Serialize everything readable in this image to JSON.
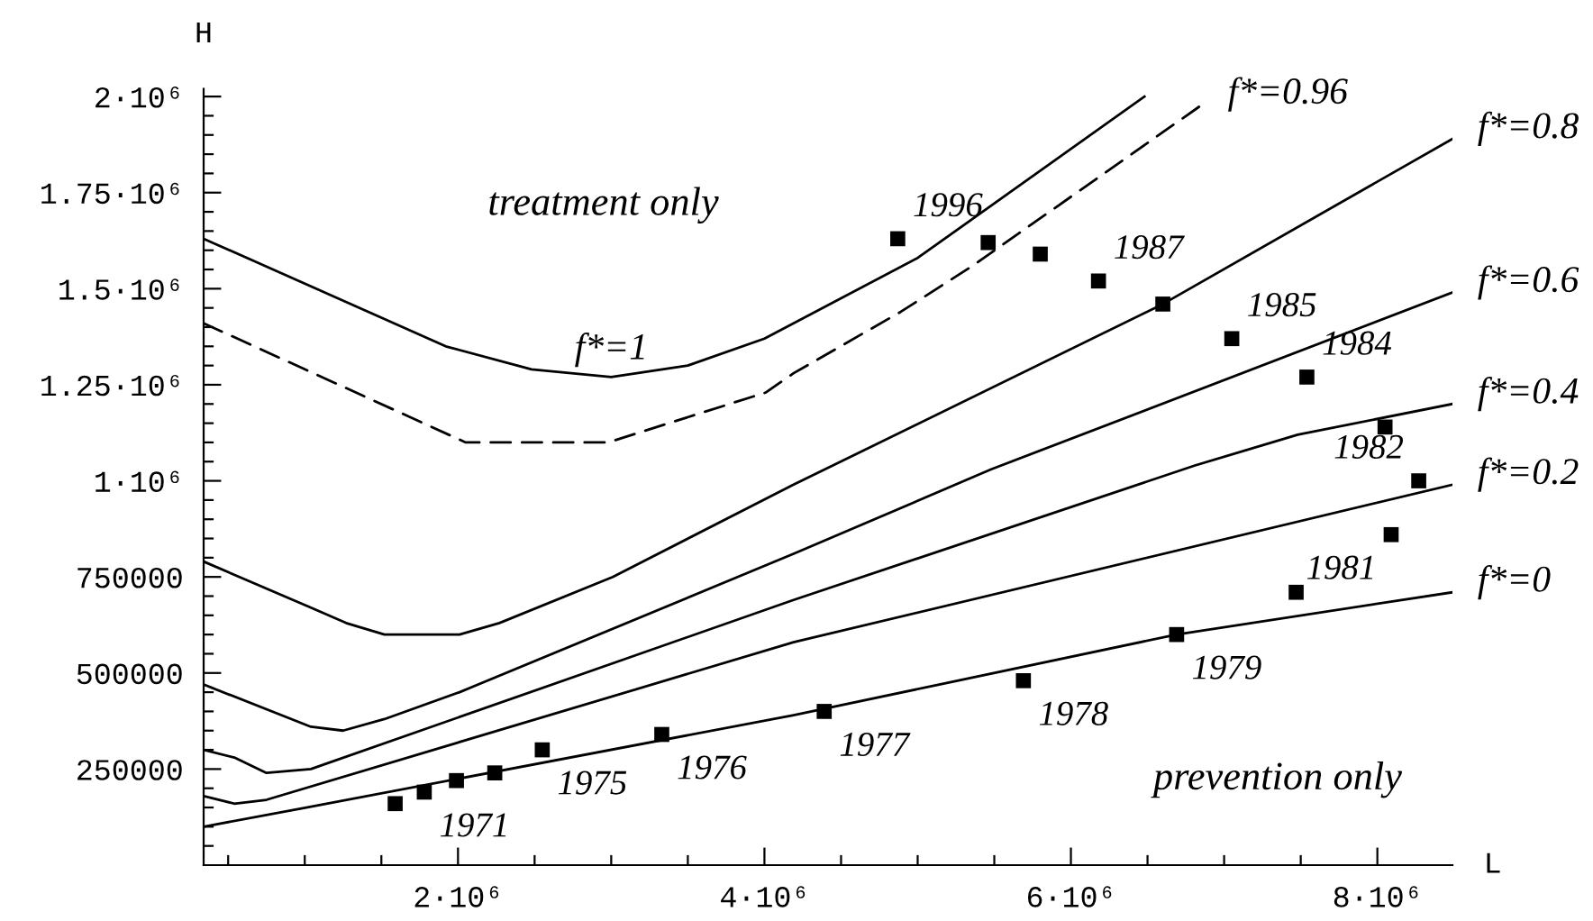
{
  "chart_data": {
    "type": "line",
    "xlabel": "L",
    "ylabel": "H",
    "xlim": [
      340000,
      8490000
    ],
    "ylim": [
      0,
      2020000
    ],
    "xticks": [
      {
        "value": 500000,
        "label": null
      },
      {
        "value": 1000000,
        "label": null
      },
      {
        "value": 1500000,
        "label": null
      },
      {
        "value": 2000000,
        "label": "2·10⁶"
      },
      {
        "value": 2500000,
        "label": null
      },
      {
        "value": 3000000,
        "label": null
      },
      {
        "value": 3500000,
        "label": null
      },
      {
        "value": 4000000,
        "label": "4·10⁶"
      },
      {
        "value": 4500000,
        "label": null
      },
      {
        "value": 5000000,
        "label": null
      },
      {
        "value": 5500000,
        "label": null
      },
      {
        "value": 6000000,
        "label": "6·10⁶"
      },
      {
        "value": 6500000,
        "label": null
      },
      {
        "value": 7000000,
        "label": null
      },
      {
        "value": 7500000,
        "label": null
      },
      {
        "value": 8000000,
        "label": "8·10⁶"
      }
    ],
    "yticks": [
      {
        "value": 50000,
        "label": null
      },
      {
        "value": 100000,
        "label": null
      },
      {
        "value": 150000,
        "label": null
      },
      {
        "value": 200000,
        "label": null
      },
      250000,
      {
        "value": 300000,
        "label": null
      },
      {
        "value": 350000,
        "label": null
      },
      {
        "value": 400000,
        "label": null
      },
      {
        "value": 450000,
        "label": null
      },
      500000,
      {
        "value": 550000,
        "label": null
      },
      {
        "value": 600000,
        "label": null
      },
      {
        "value": 650000,
        "label": null
      },
      {
        "value": 700000,
        "label": null
      },
      750000,
      {
        "value": 800000,
        "label": null
      },
      {
        "value": 850000,
        "label": null
      },
      {
        "value": 900000,
        "label": null
      },
      {
        "value": 950000,
        "label": null
      },
      {
        "value": 1000000,
        "label": "1·10⁶"
      },
      {
        "value": 1050000,
        "label": null
      },
      {
        "value": 1100000,
        "label": null
      },
      {
        "value": 1150000,
        "label": null
      },
      {
        "value": 1200000,
        "label": null
      },
      {
        "value": 1250000,
        "label": "1.25·10⁶"
      },
      {
        "value": 1300000,
        "label": null
      },
      {
        "value": 1350000,
        "label": null
      },
      {
        "value": 1400000,
        "label": null
      },
      {
        "value": 1450000,
        "label": null
      },
      {
        "value": 1500000,
        "label": "1.5·10⁶"
      },
      {
        "value": 1550000,
        "label": null
      },
      {
        "value": 1600000,
        "label": null
      },
      {
        "value": 1650000,
        "label": null
      },
      {
        "value": 1700000,
        "label": null
      },
      {
        "value": 1750000,
        "label": "1.75·10⁶"
      },
      {
        "value": 1800000,
        "label": null
      },
      {
        "value": 1850000,
        "label": null
      },
      {
        "value": 1900000,
        "label": null
      },
      {
        "value": 1950000,
        "label": null
      },
      {
        "value": 2000000,
        "label": "2·10⁶"
      }
    ],
    "grid": false,
    "legend": false,
    "series": [
      {
        "name": "f*=1",
        "type": "line",
        "color": "#000000",
        "line_style": "solid",
        "marker": "none",
        "x": [
          340000,
          1920000,
          2480000,
          3000000,
          3500000,
          4000000,
          5000000,
          6480000
        ],
        "values": [
          1630000,
          1350000,
          1290000,
          1270000,
          1300000,
          1370000,
          1580000,
          2000000
        ]
      },
      {
        "name": "f*=0.96",
        "type": "line",
        "color": "#000000",
        "line_style": "dashed",
        "marker": "none",
        "x": [
          340000,
          2050000,
          2980000,
          4010000,
          4190000,
          4890000,
          5360000,
          6860000
        ],
        "values": [
          1410000,
          1100000,
          1100000,
          1230000,
          1280000,
          1440000,
          1560000,
          1980000
        ]
      },
      {
        "name": "f*=0.8",
        "type": "line",
        "color": "#000000",
        "line_style": "solid",
        "marker": "none",
        "x": [
          340000,
          1040000,
          1270000,
          1520000,
          2010000,
          2270000,
          3010000,
          4190000,
          6600000,
          8490000
        ],
        "values": [
          790000,
          670000,
          630000,
          600000,
          600000,
          630000,
          750000,
          990000,
          1460000,
          1890000
        ]
      },
      {
        "name": "f*=0.6",
        "type": "line",
        "color": "#000000",
        "line_style": "solid",
        "marker": "none",
        "x": [
          340000,
          1040000,
          1250000,
          1520000,
          2010000,
          4190000,
          5480000,
          8490000
        ],
        "values": [
          470000,
          360000,
          350000,
          380000,
          450000,
          810000,
          1030000,
          1490000
        ]
      },
      {
        "name": "f*=0.4",
        "type": "line",
        "color": "#000000",
        "line_style": "solid",
        "marker": "none",
        "x": [
          340000,
          540000,
          750000,
          1040000,
          4190000,
          6810000,
          7480000,
          8490000
        ],
        "values": [
          300000,
          280000,
          240000,
          250000,
          690000,
          1040000,
          1120000,
          1200000
        ]
      },
      {
        "name": "f*=0.2",
        "type": "line",
        "color": "#000000",
        "line_style": "solid",
        "marker": "none",
        "x": [
          340000,
          540000,
          750000,
          4190000,
          8490000
        ],
        "values": [
          180000,
          160000,
          170000,
          580000,
          990000
        ]
      },
      {
        "name": "f*=0",
        "type": "line",
        "color": "#000000",
        "line_style": "solid",
        "marker": "none",
        "x": [
          340000,
          1010000,
          4190000,
          6690000,
          8490000
        ],
        "values": [
          100000,
          150000,
          390000,
          600000,
          710000
        ]
      },
      {
        "type": "scatter",
        "color": "#000000",
        "marker": "square",
        "x": [
          1590000,
          1780000,
          1990000,
          2240000,
          2550000,
          3330000,
          4390000,
          5690000,
          6690000,
          7470000,
          8090000,
          8270000,
          8050000,
          7540000,
          7050000,
          6600000,
          6180000,
          5800000,
          5460000,
          4870000
        ],
        "values": [
          160000,
          190000,
          220000,
          240000,
          300000,
          340000,
          400000,
          480000,
          600000,
          710000,
          860000,
          1000000,
          1140000,
          1270000,
          1370000,
          1460000,
          1520000,
          1590000,
          1620000,
          1630000
        ]
      }
    ],
    "annotations": [
      "treatment only",
      "prevention only",
      {
        "text": "1971",
        "x": 1780000,
        "y": 190000
      },
      {
        "text": "1975",
        "x": 2550000,
        "y": 300000
      },
      {
        "text": "1976",
        "x": 3330000,
        "y": 340000
      },
      {
        "text": "1977",
        "x": 4390000,
        "y": 400000
      },
      {
        "text": "1978",
        "x": 5690000,
        "y": 480000
      },
      {
        "text": "1979",
        "x": 6690000,
        "y": 600000
      },
      {
        "text": "1981",
        "x": 8090000,
        "y": 860000
      },
      {
        "text": "1982",
        "x": 8270000,
        "y": 1000000
      },
      {
        "text": "1984",
        "x": 7540000,
        "y": 1270000
      },
      {
        "text": "1985",
        "x": 7050000,
        "y": 1370000
      },
      {
        "text": "1987",
        "x": 6180000,
        "y": 1520000
      },
      {
        "text": "1996",
        "x": 4870000,
        "y": 1630000
      }
    ]
  }
}
